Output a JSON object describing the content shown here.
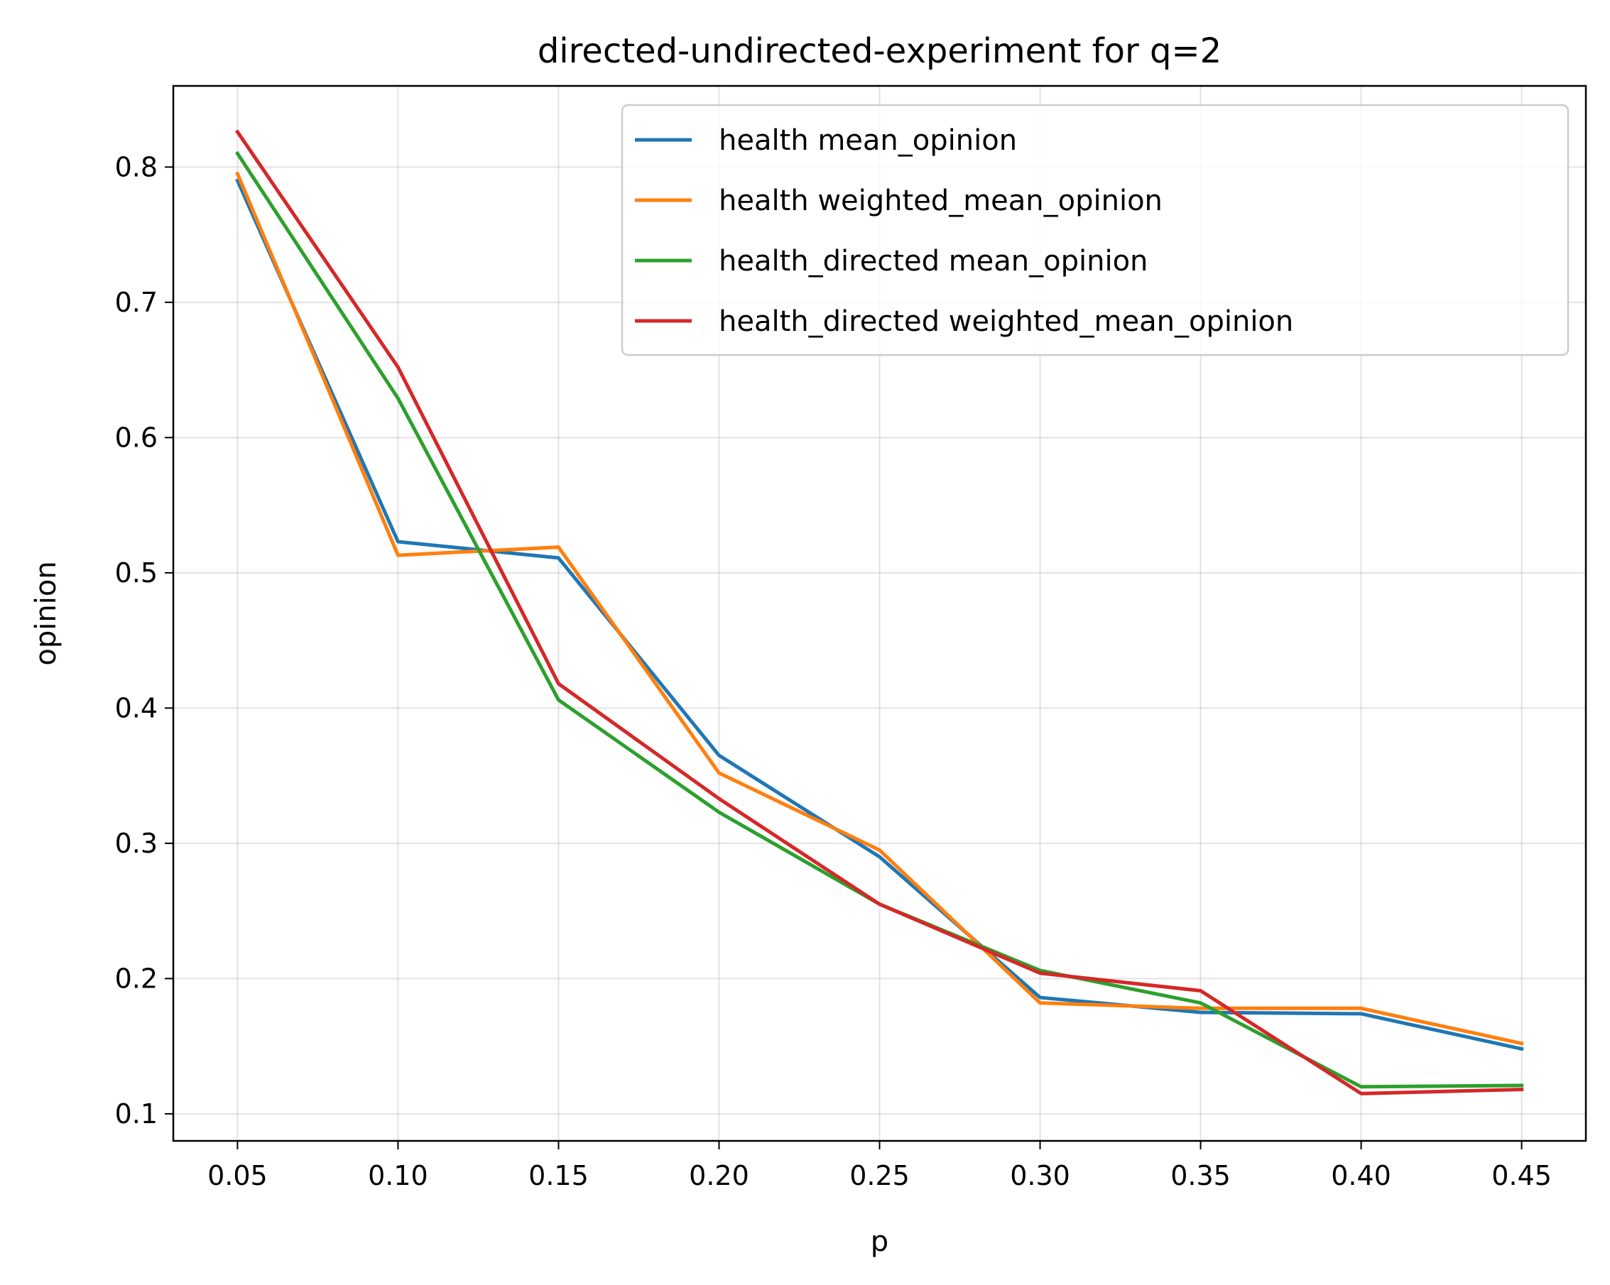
{
  "chart_data": {
    "type": "line",
    "title": "directed-undirected-experiment for q=2",
    "xlabel": "p",
    "ylabel": "opinion",
    "x": [
      0.05,
      0.1,
      0.15,
      0.2,
      0.25,
      0.3,
      0.35,
      0.4,
      0.45
    ],
    "xticks": [
      "0.05",
      "0.10",
      "0.15",
      "0.20",
      "0.25",
      "0.30",
      "0.35",
      "0.40",
      "0.45"
    ],
    "yticks": [
      "0.1",
      "0.2",
      "0.3",
      "0.4",
      "0.5",
      "0.6",
      "0.7",
      "0.8"
    ],
    "xlim": [
      0.03,
      0.47
    ],
    "ylim": [
      0.08,
      0.86
    ],
    "grid": true,
    "legend_position": "top-right",
    "series": [
      {
        "name": "health mean_opinion",
        "color": "#1f77b4",
        "values": [
          0.79,
          0.523,
          0.511,
          0.365,
          0.29,
          0.186,
          0.175,
          0.174,
          0.148
        ]
      },
      {
        "name": "health weighted_mean_opinion",
        "color": "#ff7f0e",
        "values": [
          0.795,
          0.513,
          0.519,
          0.352,
          0.295,
          0.182,
          0.178,
          0.178,
          0.152
        ]
      },
      {
        "name": "health_directed mean_opinion",
        "color": "#2ca02c",
        "values": [
          0.81,
          0.629,
          0.406,
          0.323,
          0.255,
          0.206,
          0.182,
          0.12,
          0.121
        ]
      },
      {
        "name": "health_directed weighted_mean_opinion",
        "color": "#d62728",
        "values": [
          0.826,
          0.652,
          0.418,
          0.333,
          0.255,
          0.204,
          0.191,
          0.115,
          0.118
        ]
      }
    ]
  }
}
